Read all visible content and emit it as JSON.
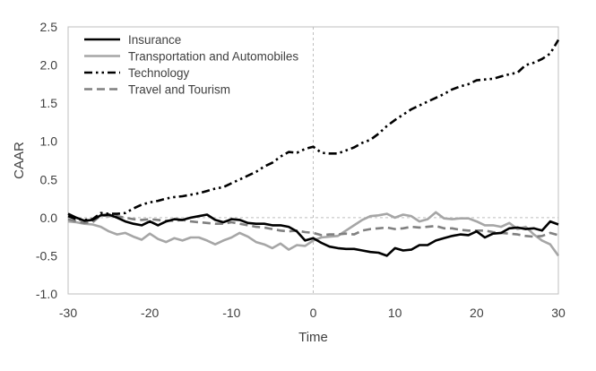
{
  "chart_data": {
    "type": "line",
    "title": "",
    "xlabel": "Time",
    "ylabel": "CAAR",
    "xlim": [
      -30,
      30
    ],
    "ylim": [
      -1.0,
      2.5
    ],
    "xticks": [
      -30,
      -20,
      -10,
      0,
      10,
      20,
      30
    ],
    "yticks": [
      -1.0,
      -0.5,
      0.0,
      0.5,
      1.0,
      1.5,
      2.0,
      2.5
    ],
    "xtick_labels": [
      "-30",
      "-20",
      "-10",
      "0",
      "10",
      "20",
      "30"
    ],
    "ytick_labels": [
      "-1.0",
      "-0.5",
      "0.0",
      "0.5",
      "1.0",
      "1.5",
      "2.0",
      "2.5"
    ],
    "grid": false,
    "legend_position": "top-left",
    "reference_lines": {
      "x": 0,
      "y": 0,
      "color": "#bfbfbf",
      "style": "dotted"
    },
    "x": [
      -30,
      -29,
      -28,
      -27,
      -26,
      -25,
      -24,
      -23,
      -22,
      -21,
      -20,
      -19,
      -18,
      -17,
      -16,
      -15,
      -14,
      -13,
      -12,
      -11,
      -10,
      -9,
      -8,
      -7,
      -6,
      -5,
      -4,
      -3,
      -2,
      -1,
      0,
      1,
      2,
      3,
      4,
      5,
      6,
      7,
      8,
      9,
      10,
      11,
      12,
      13,
      14,
      15,
      16,
      17,
      18,
      19,
      20,
      21,
      22,
      23,
      24,
      25,
      26,
      27,
      28,
      29,
      30
    ],
    "series": [
      {
        "name": "Insurance",
        "color": "#000000",
        "style": "solid",
        "values": [
          0.05,
          0.0,
          -0.04,
          -0.03,
          0.03,
          0.04,
          0.0,
          -0.05,
          -0.08,
          -0.1,
          -0.05,
          -0.1,
          -0.05,
          -0.02,
          -0.03,
          0.0,
          0.02,
          0.04,
          -0.03,
          -0.06,
          -0.02,
          -0.03,
          -0.07,
          -0.08,
          -0.08,
          -0.1,
          -0.1,
          -0.12,
          -0.18,
          -0.3,
          -0.27,
          -0.33,
          -0.38,
          -0.4,
          -0.41,
          -0.41,
          -0.43,
          -0.45,
          -0.46,
          -0.5,
          -0.4,
          -0.43,
          -0.42,
          -0.36,
          -0.36,
          -0.3,
          -0.27,
          -0.24,
          -0.22,
          -0.23,
          -0.18,
          -0.26,
          -0.21,
          -0.2,
          -0.14,
          -0.13,
          -0.15,
          -0.14,
          -0.17,
          -0.05,
          -0.09
        ]
      },
      {
        "name": "Transportation and Automobiles",
        "color": "#a6a6a6",
        "style": "solid",
        "values": [
          -0.05,
          -0.06,
          -0.08,
          -0.09,
          -0.12,
          -0.18,
          -0.22,
          -0.2,
          -0.25,
          -0.29,
          -0.21,
          -0.28,
          -0.32,
          -0.27,
          -0.3,
          -0.26,
          -0.26,
          -0.3,
          -0.35,
          -0.3,
          -0.26,
          -0.2,
          -0.25,
          -0.32,
          -0.35,
          -0.4,
          -0.34,
          -0.42,
          -0.36,
          -0.37,
          -0.3,
          -0.26,
          -0.25,
          -0.24,
          -0.17,
          -0.1,
          -0.03,
          0.02,
          0.03,
          0.05,
          0.0,
          0.04,
          0.02,
          -0.05,
          -0.02,
          0.07,
          -0.01,
          -0.02,
          -0.01,
          -0.01,
          -0.05,
          -0.1,
          -0.1,
          -0.12,
          -0.07,
          -0.15,
          -0.12,
          -0.22,
          -0.3,
          -0.35,
          -0.5
        ]
      },
      {
        "name": "Technology",
        "color": "#000000",
        "style": "dash-dot-dot",
        "values": [
          0.02,
          -0.02,
          -0.03,
          -0.02,
          0.06,
          0.05,
          0.05,
          0.06,
          0.12,
          0.17,
          0.2,
          0.22,
          0.25,
          0.27,
          0.28,
          0.3,
          0.32,
          0.35,
          0.38,
          0.4,
          0.45,
          0.5,
          0.55,
          0.6,
          0.67,
          0.72,
          0.8,
          0.86,
          0.85,
          0.9,
          0.93,
          0.85,
          0.84,
          0.84,
          0.88,
          0.92,
          0.98,
          1.02,
          1.1,
          1.2,
          1.28,
          1.35,
          1.42,
          1.47,
          1.52,
          1.57,
          1.62,
          1.68,
          1.72,
          1.75,
          1.8,
          1.81,
          1.82,
          1.85,
          1.88,
          1.9,
          2.0,
          2.03,
          2.08,
          2.15,
          2.33
        ]
      },
      {
        "name": "Travel and Tourism",
        "color": "#808080",
        "style": "dashed",
        "values": [
          -0.02,
          -0.05,
          -0.07,
          -0.06,
          0.03,
          0.02,
          0.02,
          0.0,
          -0.02,
          -0.03,
          -0.02,
          -0.03,
          -0.04,
          -0.04,
          -0.03,
          -0.05,
          -0.06,
          -0.07,
          -0.08,
          -0.08,
          -0.06,
          -0.08,
          -0.1,
          -0.12,
          -0.13,
          -0.15,
          -0.17,
          -0.18,
          -0.17,
          -0.19,
          -0.2,
          -0.23,
          -0.22,
          -0.22,
          -0.21,
          -0.22,
          -0.17,
          -0.15,
          -0.14,
          -0.13,
          -0.15,
          -0.14,
          -0.12,
          -0.13,
          -0.12,
          -0.11,
          -0.14,
          -0.14,
          -0.16,
          -0.17,
          -0.17,
          -0.17,
          -0.19,
          -0.2,
          -0.21,
          -0.22,
          -0.24,
          -0.25,
          -0.24,
          -0.2,
          -0.23
        ]
      }
    ]
  }
}
